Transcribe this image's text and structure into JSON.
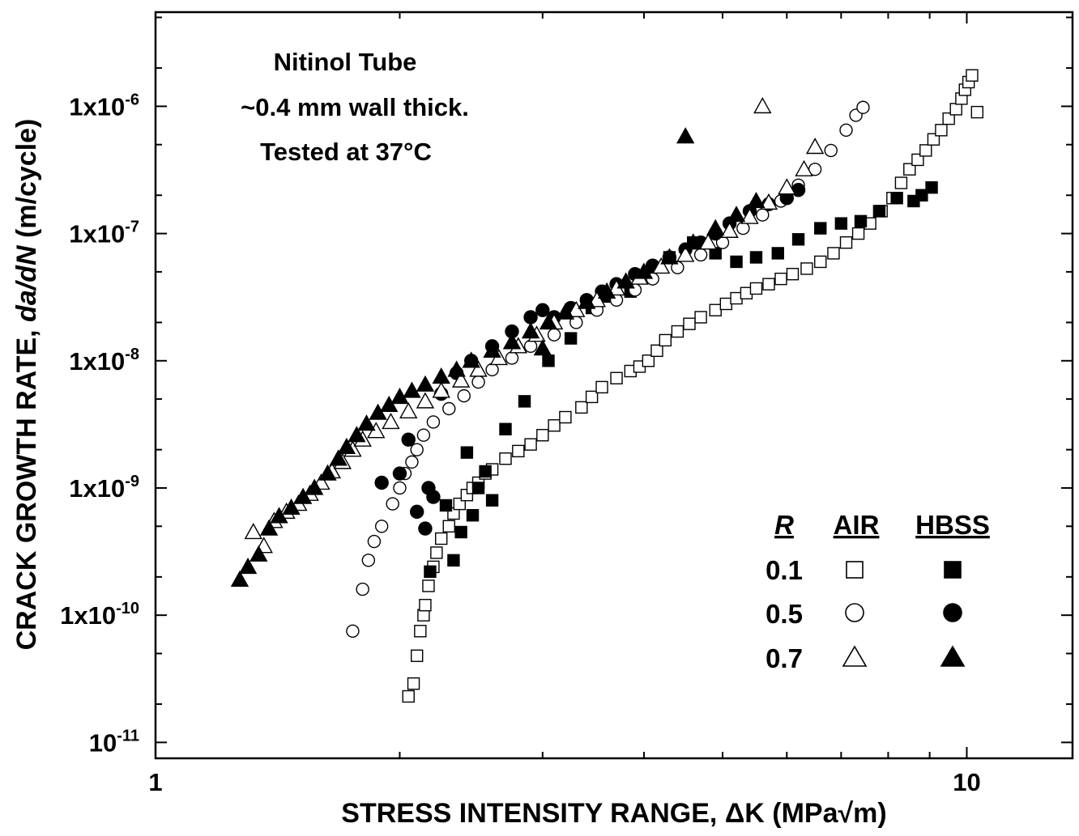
{
  "chart_data": {
    "type": "scatter",
    "xscale": "log",
    "yscale": "log",
    "xlim": [
      1,
      13.5
    ],
    "ylim": [
      7.5e-12,
      5.5e-06
    ],
    "xlabel": "STRESS INTENSITY RANGE, ΔK (MPa√m)",
    "ylabel_prefix": "CRACK GROWTH RATE, ",
    "ylabel_italic": "da/dN",
    "ylabel_suffix": " (m/cycle)",
    "x_tick_labels": [
      {
        "value": 1,
        "label": "1"
      },
      {
        "value": 10,
        "label": "10"
      }
    ],
    "y_tick_labels": [
      {
        "value": 1e-11,
        "base": "10",
        "exp": "-11"
      },
      {
        "value": 1e-10,
        "base": "1x10",
        "exp": "-10"
      },
      {
        "value": 1e-09,
        "base": "1x10",
        "exp": "-9"
      },
      {
        "value": 1e-08,
        "base": "1x10",
        "exp": "-8"
      },
      {
        "value": 1e-07,
        "base": "1x10",
        "exp": "-7"
      },
      {
        "value": 1e-06,
        "base": "1x10",
        "exp": "-6"
      }
    ],
    "annotation": [
      "Nitinol Tube",
      "~0.4 mm wall thick.",
      "Tested at 37°C"
    ],
    "legend": {
      "header_r": "R",
      "header_air": "AIR",
      "header_hbss": "HBSS",
      "rows": [
        {
          "r": "0.1",
          "marker": "square"
        },
        {
          "r": "0.5",
          "marker": "circle"
        },
        {
          "r": "0.7",
          "marker": "triangle"
        }
      ]
    },
    "series": [
      {
        "r": "0.1",
        "env": "AIR",
        "marker": "square",
        "filled": false,
        "x": [
          2.05,
          2.08,
          2.1,
          2.12,
          2.14,
          2.15,
          2.17,
          2.2,
          2.22,
          2.25,
          2.3,
          2.33,
          2.37,
          2.42,
          2.46,
          2.5,
          2.55,
          2.6,
          2.7,
          2.8,
          2.9,
          3.0,
          3.1,
          3.2,
          3.35,
          3.45,
          3.55,
          3.7,
          3.85,
          3.95,
          4.05,
          4.15,
          4.25,
          4.4,
          4.55,
          4.7,
          4.9,
          5.05,
          5.2,
          5.35,
          5.5,
          5.7,
          5.9,
          6.1,
          6.35,
          6.6,
          6.85,
          7.1,
          7.35,
          7.6,
          7.85,
          8.1,
          8.3,
          8.5,
          8.7,
          8.9,
          9.1,
          9.3,
          9.5,
          9.7,
          9.85,
          9.95,
          10.05,
          10.15,
          10.3
        ],
        "y": [
          2.3e-11,
          2.9e-11,
          4.8e-11,
          7.5e-11,
          1e-10,
          1.2e-10,
          1.7e-10,
          2.4e-10,
          3.1e-10,
          4e-10,
          5e-10,
          6.3e-10,
          7.5e-10,
          8.8e-10,
          1e-09,
          1.1e-09,
          1.3e-09,
          1.4e-09,
          1.7e-09,
          1.95e-09,
          2.2e-09,
          2.6e-09,
          3.1e-09,
          3.6e-09,
          4.3e-09,
          5.2e-09,
          6.2e-09,
          7.3e-09,
          8.3e-09,
          9e-09,
          1e-08,
          1.2e-08,
          1.45e-08,
          1.7e-08,
          1.95e-08,
          2.2e-08,
          2.5e-08,
          2.8e-08,
          3.1e-08,
          3.4e-08,
          3.7e-08,
          4e-08,
          4.4e-08,
          4.8e-08,
          5.3e-08,
          6e-08,
          7e-08,
          8.5e-08,
          1e-07,
          1.2e-07,
          1.5e-07,
          1.9e-07,
          2.5e-07,
          3.2e-07,
          3.8e-07,
          4.5e-07,
          5.5e-07,
          6.5e-07,
          8e-07,
          9.5e-07,
          1.15e-06,
          1.35e-06,
          1.55e-06,
          1.75e-06,
          9e-07
        ]
      },
      {
        "r": "0.1",
        "env": "HBSS",
        "marker": "square",
        "filled": true,
        "x": [
          2.18,
          2.28,
          2.33,
          2.38,
          2.42,
          2.46,
          2.5,
          2.55,
          2.6,
          2.7,
          2.85,
          3.05,
          3.25,
          3.45,
          3.6,
          3.85,
          4.05,
          4.3,
          4.6,
          4.9,
          5.2,
          5.5,
          5.85,
          6.2,
          6.6,
          7.0,
          7.4,
          7.8,
          8.2,
          8.6,
          8.8,
          9.05
        ],
        "y": [
          2.2e-10,
          7.3e-10,
          2.7e-10,
          4.5e-10,
          1.9e-09,
          6.1e-10,
          1e-09,
          1.35e-09,
          8e-10,
          2.9e-09,
          4.8e-09,
          1e-08,
          1.5e-08,
          2.6e-08,
          3.2e-08,
          3.5e-08,
          5e-08,
          6.5e-08,
          8.5e-08,
          7e-08,
          6e-08,
          6.5e-08,
          7e-08,
          9e-08,
          1.1e-07,
          1.2e-07,
          1.25e-07,
          1.5e-07,
          1.9e-07,
          1.8e-07,
          2e-07,
          2.3e-07
        ]
      },
      {
        "r": "0.5",
        "env": "AIR",
        "marker": "circle",
        "filled": false,
        "x": [
          1.75,
          1.8,
          1.83,
          1.86,
          1.9,
          1.96,
          2.0,
          2.03,
          2.07,
          2.1,
          2.14,
          2.2,
          2.3,
          2.4,
          2.5,
          2.6,
          2.75,
          2.9,
          3.1,
          3.3,
          3.5,
          3.7,
          3.9,
          4.1,
          4.4,
          4.7,
          5.0,
          5.3,
          5.6,
          5.9,
          6.2,
          6.5,
          6.8,
          7.1,
          7.3,
          7.45
        ],
        "y": [
          7.5e-11,
          1.6e-10,
          2.7e-10,
          3.8e-10,
          5e-10,
          7.5e-10,
          1e-09,
          1.3e-09,
          1.6e-09,
          2e-09,
          2.6e-09,
          3.3e-09,
          4.2e-09,
          5.3e-09,
          6.8e-09,
          8.5e-09,
          1.05e-08,
          1.3e-08,
          1.6e-08,
          2e-08,
          2.5e-08,
          3e-08,
          3.6e-08,
          4.4e-08,
          5.4e-08,
          6.8e-08,
          8.5e-08,
          1.1e-07,
          1.4e-07,
          1.8e-07,
          2.4e-07,
          3.2e-07,
          4.5e-07,
          6.5e-07,
          8.5e-07,
          9.8e-07
        ]
      },
      {
        "r": "0.5",
        "env": "HBSS",
        "marker": "circle",
        "filled": true,
        "x": [
          1.9,
          2.0,
          2.05,
          2.1,
          2.15,
          2.17,
          2.2,
          2.25,
          2.35,
          2.45,
          2.6,
          2.75,
          2.9,
          3.0,
          3.1,
          3.25,
          3.4,
          3.55,
          3.7,
          3.9,
          4.1,
          4.3,
          4.5,
          4.7,
          4.9,
          5.1,
          5.4,
          5.7,
          6.0,
          6.2
        ],
        "y": [
          1.1e-09,
          1.3e-09,
          2.4e-09,
          6.5e-10,
          4.8e-10,
          1e-09,
          8.5e-10,
          5.5e-09,
          8e-09,
          1e-08,
          1.3e-08,
          1.7e-08,
          2.2e-08,
          2.5e-08,
          2.2e-08,
          2.6e-08,
          3e-08,
          3.5e-08,
          4e-08,
          4.8e-08,
          5.6e-08,
          6.5e-08,
          7.5e-08,
          8.5e-08,
          1e-07,
          1.2e-07,
          1.5e-07,
          1.7e-07,
          1.9e-07,
          2.2e-07
        ]
      },
      {
        "r": "0.7",
        "env": "AIR",
        "marker": "triangle",
        "filled": false,
        "x": [
          1.32,
          1.36,
          1.4,
          1.45,
          1.5,
          1.55,
          1.6,
          1.65,
          1.7,
          1.75,
          1.8,
          1.87,
          1.95,
          2.05,
          2.15,
          2.25,
          2.38,
          2.5,
          2.65,
          2.8,
          2.95,
          3.1,
          3.3,
          3.5,
          3.7,
          3.95,
          4.2,
          4.5,
          4.8,
          5.1,
          5.4,
          5.7,
          6.0,
          6.3,
          6.5,
          5.6
        ],
        "y": [
          4.5e-10,
          3.5e-10,
          5.5e-10,
          6.5e-10,
          7.5e-10,
          9e-10,
          1.1e-09,
          1.35e-09,
          1.6e-09,
          2e-09,
          2.4e-09,
          2.8e-09,
          3.3e-09,
          4e-09,
          4.8e-09,
          5.8e-09,
          7e-09,
          8.5e-09,
          1.05e-08,
          1.3e-08,
          1.6e-08,
          2e-08,
          2.5e-08,
          3e-08,
          3.7e-08,
          4.5e-08,
          5.5e-08,
          6.8e-08,
          8.5e-08,
          1.05e-07,
          1.35e-07,
          1.75e-07,
          2.3e-07,
          3.2e-07,
          4.8e-07,
          1e-06
        ]
      },
      {
        "r": "0.7",
        "env": "HBSS",
        "marker": "triangle",
        "filled": true,
        "x": [
          1.27,
          1.3,
          1.34,
          1.38,
          1.42,
          1.47,
          1.52,
          1.57,
          1.63,
          1.68,
          1.72,
          1.77,
          1.82,
          1.88,
          1.94,
          2.0,
          2.07,
          2.15,
          2.25,
          2.35,
          2.45,
          2.6,
          2.75,
          2.9,
          3.05,
          3.2,
          3.4,
          3.6,
          3.8,
          4.0,
          4.3,
          4.6,
          4.9,
          5.2,
          5.5,
          4.5,
          3.0
        ],
        "y": [
          1.9e-10,
          2.4e-10,
          3e-10,
          4.8e-10,
          6e-10,
          7e-10,
          8.5e-10,
          1e-09,
          1.3e-09,
          1.7e-09,
          2.1e-09,
          2.6e-09,
          3.2e-09,
          3.9e-09,
          4.5e-09,
          5.2e-09,
          5.8e-09,
          6.5e-09,
          7.5e-09,
          8.5e-09,
          1e-08,
          1.2e-08,
          1.4e-08,
          1.7e-08,
          2e-08,
          2.4e-08,
          2.9e-08,
          3.5e-08,
          4.2e-08,
          5e-08,
          6.5e-08,
          8.5e-08,
          1.1e-07,
          1.4e-07,
          1.8e-07,
          5.8e-07,
          1.25e-08
        ]
      }
    ]
  }
}
